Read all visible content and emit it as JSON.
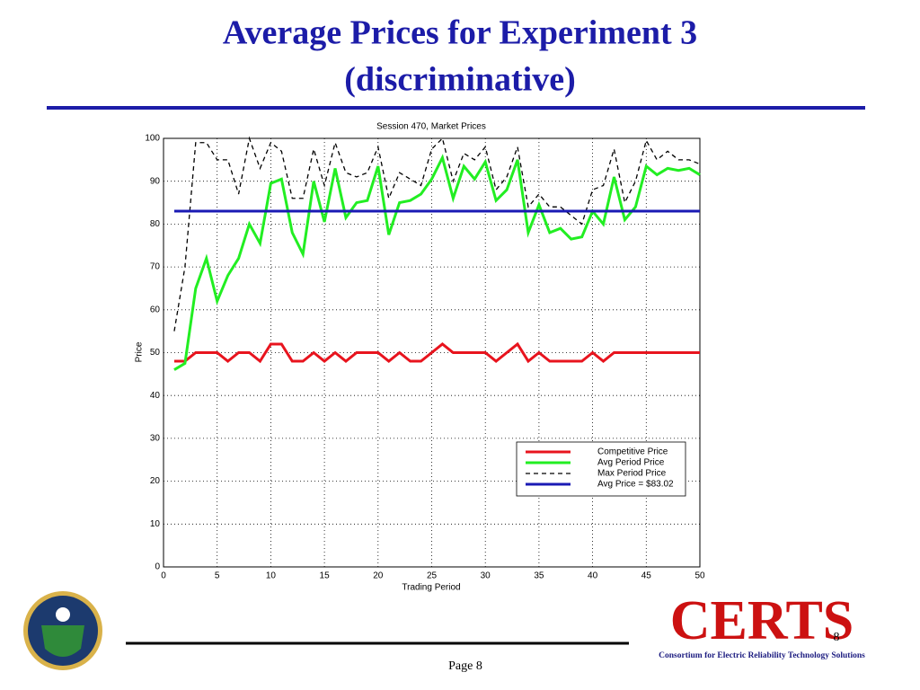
{
  "slide": {
    "title_lines": [
      "Average Prices for Experiment 3",
      "(discriminative)"
    ],
    "footer": "Page 8",
    "slide_number": "8",
    "logo": "CERTS",
    "logo_subtitle": "Consortium for Electric Reliability Technology Solutions"
  },
  "chart_data": {
    "type": "line",
    "title": "Session 470, Market Prices",
    "x_label": "Trading Period",
    "y_label": "Price",
    "x": [
      1,
      2,
      3,
      4,
      5,
      6,
      7,
      8,
      9,
      10,
      11,
      12,
      13,
      14,
      15,
      16,
      17,
      18,
      19,
      20,
      21,
      22,
      23,
      24,
      25,
      26,
      27,
      28,
      29,
      30,
      31,
      32,
      33,
      34,
      35,
      36,
      37,
      38,
      39,
      40,
      41,
      42,
      43,
      44,
      45,
      46,
      47,
      48,
      49,
      50
    ],
    "series": [
      {
        "name": "Competitive Price",
        "color": "#e8141e",
        "dash": false,
        "values": [
          48,
          48,
          50,
          50,
          50,
          48,
          50,
          50,
          48,
          52,
          52,
          48,
          48,
          50,
          48,
          50,
          48,
          50,
          50,
          50,
          48,
          50,
          48,
          48,
          50,
          52,
          50,
          50,
          50,
          50,
          48,
          50,
          52,
          48,
          50,
          48,
          48,
          48,
          48,
          50,
          48,
          50,
          50,
          50,
          50,
          50,
          50,
          50,
          50,
          50
        ]
      },
      {
        "name": "Avg Period Price",
        "color": "#22ee22",
        "dash": false,
        "values": [
          46,
          47.5,
          65,
          72,
          62,
          68,
          72,
          80,
          75.5,
          89.5,
          90.5,
          78,
          73,
          90,
          80.5,
          93,
          81.5,
          85,
          85.5,
          93.5,
          77.5,
          85,
          85.5,
          87,
          90.5,
          95.5,
          86,
          93.5,
          90.5,
          94.5,
          85.5,
          88,
          95,
          78,
          84.5,
          78,
          79,
          76.5,
          77,
          83,
          80,
          91,
          81,
          84,
          93.5,
          91.5,
          93,
          92.5,
          93,
          91.5
        ]
      },
      {
        "name": "Max Period Price",
        "color": "#000000",
        "dash": true,
        "values": [
          55,
          70,
          99,
          99,
          95,
          95,
          87,
          100,
          93,
          99,
          97,
          86,
          86,
          97.5,
          89,
          99,
          92,
          91,
          92,
          98,
          86,
          92,
          90.5,
          89,
          97.5,
          100,
          90,
          96.5,
          95,
          98,
          88,
          91,
          98,
          84,
          87,
          84,
          84,
          82,
          80,
          88,
          89,
          97.5,
          85,
          90,
          99.5,
          95,
          97,
          95,
          95,
          94
        ]
      },
      {
        "name": "Avg Price = $83.02",
        "color": "#1a1ab4",
        "dash": false,
        "values": [
          83.02,
          83.02,
          83.02,
          83.02,
          83.02,
          83.02,
          83.02,
          83.02,
          83.02,
          83.02,
          83.02,
          83.02,
          83.02,
          83.02,
          83.02,
          83.02,
          83.02,
          83.02,
          83.02,
          83.02,
          83.02,
          83.02,
          83.02,
          83.02,
          83.02,
          83.02,
          83.02,
          83.02,
          83.02,
          83.02,
          83.02,
          83.02,
          83.02,
          83.02,
          83.02,
          83.02,
          83.02,
          83.02,
          83.02,
          83.02,
          83.02,
          83.02,
          83.02,
          83.02,
          83.02,
          83.02,
          83.02,
          83.02,
          83.02,
          83.02
        ]
      }
    ],
    "xlim": [
      0,
      50
    ],
    "xticks": [
      0,
      5,
      10,
      15,
      20,
      25,
      30,
      35,
      40,
      45,
      50
    ],
    "ylim": [
      0,
      100
    ],
    "yticks": [
      0,
      10,
      20,
      30,
      40,
      50,
      60,
      70,
      80,
      90,
      100
    ],
    "grid": true,
    "legend": "lower right"
  }
}
